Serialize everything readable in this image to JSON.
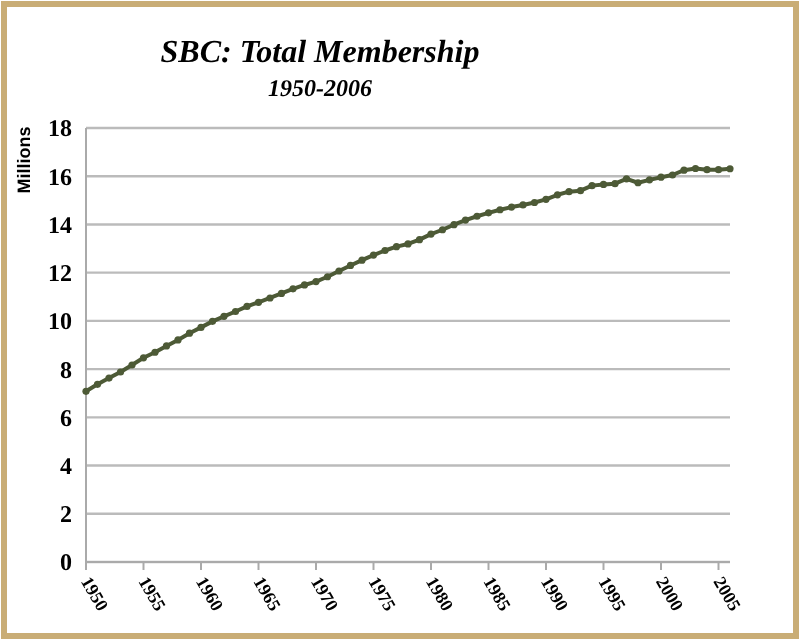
{
  "chart_data": {
    "type": "line",
    "title": "SBC: Total Membership",
    "subtitle": "1950-2006",
    "ylabel": "Millions",
    "x": [
      1950,
      1951,
      1952,
      1953,
      1954,
      1955,
      1956,
      1957,
      1958,
      1959,
      1960,
      1961,
      1962,
      1963,
      1964,
      1965,
      1966,
      1967,
      1968,
      1969,
      1970,
      1971,
      1972,
      1973,
      1974,
      1975,
      1976,
      1977,
      1978,
      1979,
      1980,
      1981,
      1982,
      1983,
      1984,
      1985,
      1986,
      1987,
      1988,
      1989,
      1990,
      1991,
      1992,
      1993,
      1994,
      1995,
      1996,
      1997,
      1998,
      1999,
      2000,
      2001,
      2002,
      2003,
      2004,
      2005,
      2006
    ],
    "series": [
      {
        "color": "#4d5a36",
        "values": [
          7.08,
          7.37,
          7.63,
          7.88,
          8.17,
          8.47,
          8.7,
          8.96,
          9.21,
          9.49,
          9.73,
          9.98,
          10.19,
          10.39,
          10.6,
          10.77,
          10.95,
          11.14,
          11.33,
          11.49,
          11.63,
          11.83,
          12.07,
          12.3,
          12.52,
          12.73,
          12.92,
          13.08,
          13.19,
          13.37,
          13.6,
          13.78,
          13.99,
          14.18,
          14.34,
          14.48,
          14.61,
          14.72,
          14.81,
          14.91,
          15.04,
          15.23,
          15.36,
          15.4,
          15.61,
          15.66,
          15.69,
          15.89,
          15.73,
          15.85,
          15.96,
          16.05,
          16.25,
          16.32,
          16.27,
          16.27,
          16.31
        ]
      }
    ],
    "xlim": [
      1950,
      2006
    ],
    "xticks": [
      1950,
      1955,
      1960,
      1965,
      1970,
      1975,
      1980,
      1985,
      1990,
      1995,
      2000,
      2005
    ],
    "ylim": [
      0,
      18
    ],
    "yticks": [
      0,
      2,
      4,
      6,
      8,
      10,
      12,
      14,
      16,
      18
    ],
    "grid": "y",
    "marker": "circle",
    "line_style": "solid"
  }
}
